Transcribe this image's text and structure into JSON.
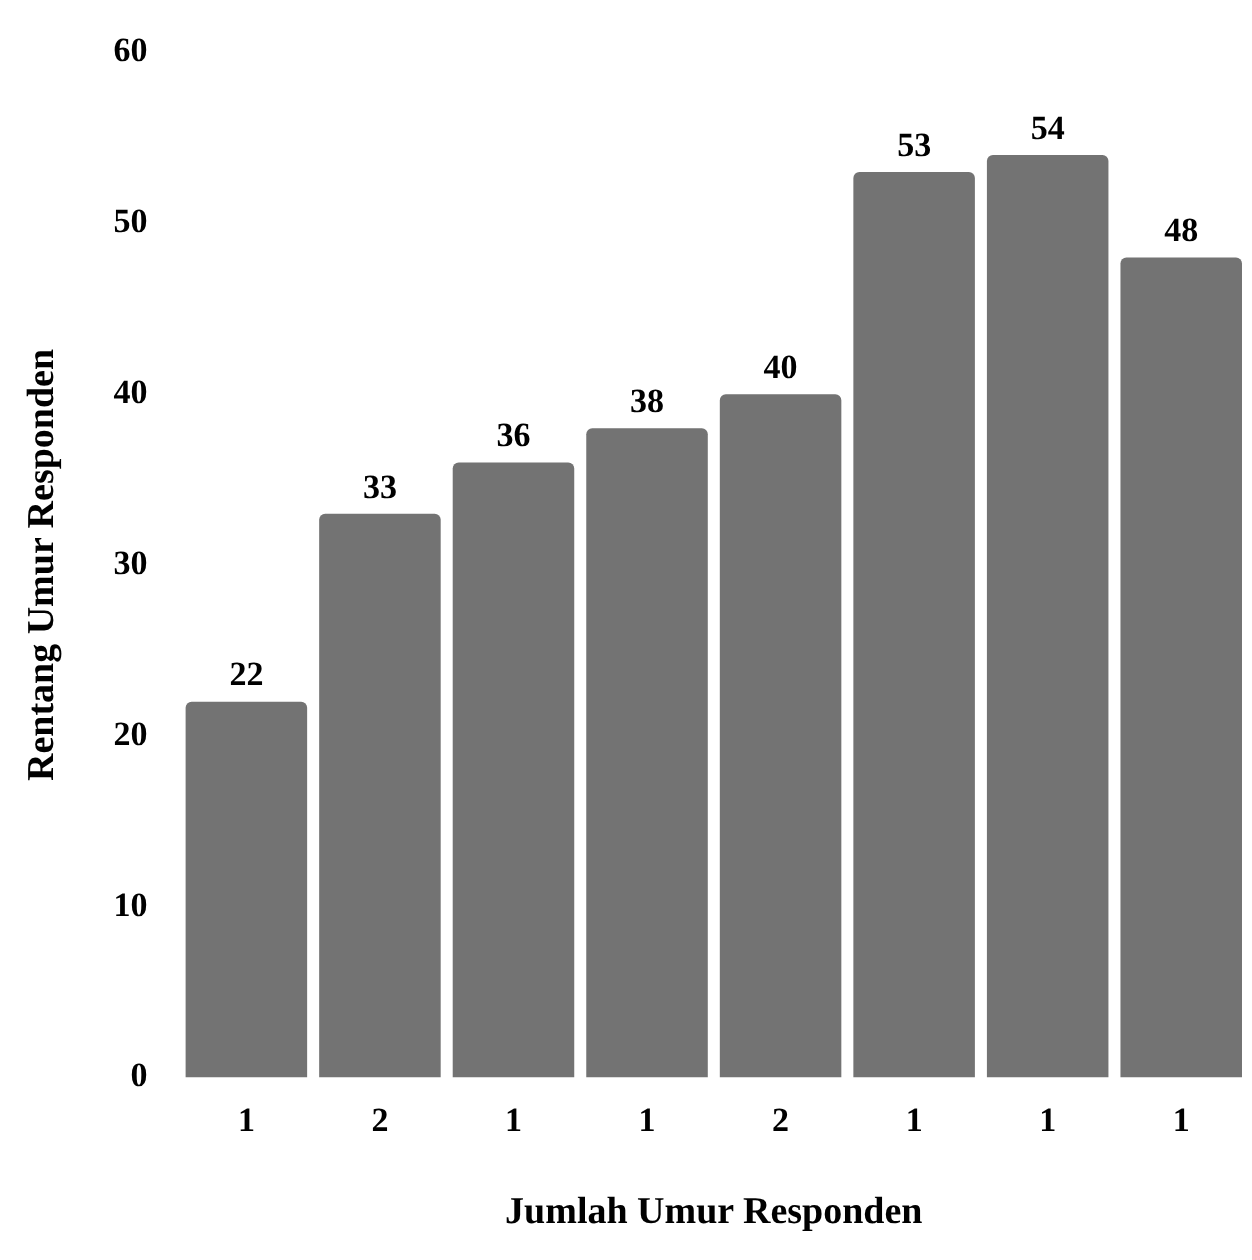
{
  "chart_data": {
    "type": "bar",
    "xlabel": "Jumlah Umur Responden",
    "ylabel": "Rentang Umur Responden",
    "categories": [
      "1",
      "2",
      "1",
      "1",
      "2",
      "1",
      "1",
      "1"
    ],
    "values": [
      22,
      33,
      36,
      38,
      40,
      53,
      54,
      48
    ],
    "color": "#737373",
    "ylim": [
      0,
      60
    ],
    "yticks": [
      0,
      10,
      20,
      30,
      40,
      50,
      60
    ],
    "grid": false,
    "legend": false,
    "data_labels": true
  }
}
